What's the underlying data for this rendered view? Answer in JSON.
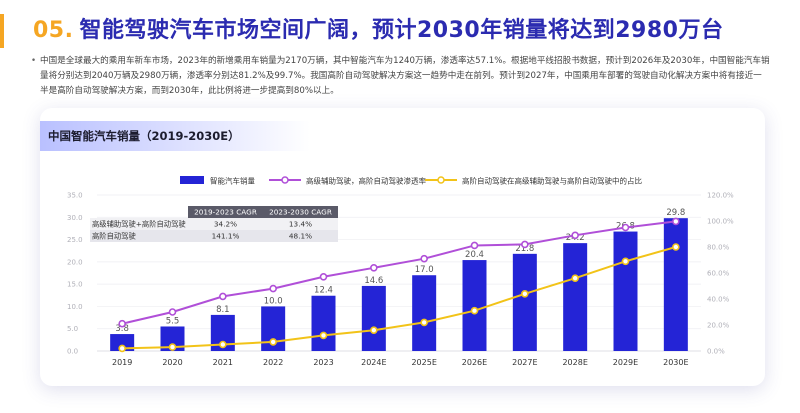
{
  "header": {
    "number": "05.",
    "title": "智能驾驶汽车市场空间广阔，预计2030年销量将达到2980万台"
  },
  "summary": "中国是全球最大的乘用车新车市场，2023年的新增乘用车销量为2170万辆，其中智能汽车为1240万辆，渗透率达57.1%。根据地平线招股书数据，预计到2026年及2030年，中国智能汽车销量将分别达到2040万辆及2980万辆，渗透率分别达81.2%及99.7%。我国高阶自动驾驶解决方案这一趋势中走在前列。预计到2027年，中国乘用车部署的驾驶自动化解决方案中将有接近一半是高阶自动驾驶解决方案，而到2030年，此比例将进一步提高到80%以上。",
  "card": {
    "title": "中国智能汽车销量（2019-2030E）"
  },
  "colors": {
    "bar": "#2424d6",
    "purple": "#b04fd8",
    "yellow": "#f2c318",
    "title_blue": "#2b2bb0",
    "accent": "#f5a623"
  },
  "chart_data": {
    "type": "bar",
    "categories": [
      "2019",
      "2020",
      "2021",
      "2022",
      "2023",
      "2024E",
      "2025E",
      "2026E",
      "2027E",
      "2028E",
      "2029E",
      "2030E"
    ],
    "series": [
      {
        "name": "智能汽车销量",
        "type": "bar",
        "axis": "left",
        "values": [
          3.8,
          5.5,
          8.1,
          10.0,
          12.4,
          14.6,
          17.0,
          20.4,
          21.8,
          24.2,
          26.8,
          29.8
        ]
      },
      {
        "name": "高级辅助驾驶，高阶自动驾驶渗透率",
        "type": "line",
        "axis": "right",
        "values": [
          21,
          30,
          42,
          48,
          57.1,
          64,
          71,
          81.2,
          82,
          89,
          95,
          99.7
        ]
      },
      {
        "name": "高阶自动驾驶在高级辅助驾驶与高阶自动驾驶中的占比",
        "type": "line",
        "axis": "right",
        "values": [
          2,
          3,
          5,
          7,
          12,
          16,
          22,
          31,
          44,
          56,
          69,
          80
        ]
      }
    ],
    "y_left": {
      "range": [
        0,
        35
      ],
      "ticks": [
        "0.0",
        "5.0",
        "10.0",
        "15.0",
        "20.0",
        "25.0",
        "30.0",
        "35.0"
      ]
    },
    "y_right": {
      "range": [
        0,
        120
      ],
      "ticks": [
        "0.0%",
        "20.0%",
        "40.0%",
        "60.0%",
        "80.0%",
        "100.0%",
        "120.0%"
      ]
    },
    "grid": true,
    "legend_position": "top",
    "cagr_table": {
      "headers": [
        "",
        "2019-2023 CAGR",
        "2023-2030 CAGR"
      ],
      "rows": [
        [
          "高级辅助驾驶+高阶自动驾驶",
          "34.2%",
          "13.4%"
        ],
        [
          "高阶自动驾驶",
          "141.1%",
          "48.1%"
        ]
      ]
    }
  }
}
